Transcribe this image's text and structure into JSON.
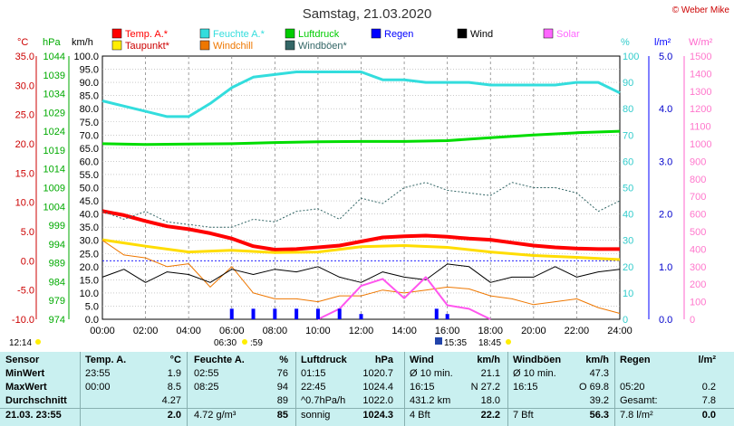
{
  "title": "Samstag, 21.03.2020",
  "copyright": "© Weber Mike",
  "legend": [
    {
      "label": "Temp. A.*",
      "color": "#ff0000"
    },
    {
      "label": "Feuchte A.*",
      "color": "#33dddd"
    },
    {
      "label": "Luftdruck",
      "color": "#00cc00"
    },
    {
      "label": "Regen",
      "color": "#0000ff"
    },
    {
      "label": "Wind",
      "color": "#000000"
    },
    {
      "label": "Solar",
      "color": "#ff66ff"
    },
    {
      "label": "Taupunkt*",
      "color": "#ffee00"
    },
    {
      "label": "Windchill",
      "color": "#ee7700"
    },
    {
      "label": "Windböen*",
      "color": "#336666"
    }
  ],
  "axis_units": {
    "temp": "°C",
    "pressure": "hPa",
    "wind": "km/h",
    "humidity": "%",
    "rain": "l/m²",
    "solar": "W/m²"
  },
  "axes": {
    "temp_ticks": [
      "35.0",
      "30.0",
      "25.0",
      "20.0",
      "15.0",
      "10.0",
      "5.0",
      "0.0",
      "-5.0",
      "-10.0"
    ],
    "pressure_ticks": [
      "1044",
      "1039",
      "1034",
      "1029",
      "1024",
      "1019",
      "1014",
      "1009",
      "1004",
      "999",
      "994",
      "989",
      "984",
      "979",
      "974"
    ],
    "wind_ticks": [
      "100.0",
      "95.0",
      "90.0",
      "85.0",
      "80.0",
      "75.0",
      "70.0",
      "65.0",
      "60.0",
      "55.0",
      "50.0",
      "45.0",
      "40.0",
      "35.0",
      "30.0",
      "25.0",
      "20.0",
      "15.0",
      "10.0",
      "5.0",
      "0.0"
    ],
    "humidity_ticks": [
      "100",
      "90",
      "80",
      "70",
      "60",
      "50",
      "40",
      "30",
      "20",
      "10",
      "0"
    ],
    "rain_ticks": [
      "5.0",
      "4.0",
      "3.0",
      "2.0",
      "1.0",
      "0.0"
    ],
    "solar_ticks": [
      "1500",
      "1400",
      "1300",
      "1200",
      "1100",
      "1000",
      "900",
      "800",
      "700",
      "600",
      "500",
      "400",
      "300",
      "200",
      "100",
      "0"
    ],
    "time_ticks": [
      "00:00",
      "02:00",
      "04:00",
      "06:00",
      "08:00",
      "10:00",
      "12:00",
      "14:00",
      "16:00",
      "18:00",
      "20:00",
      "22:00",
      "24:00"
    ]
  },
  "sun_markers": {
    "sunrise": "06:30",
    "sunset": "18:45",
    "sunrise_extra": ":59",
    "moon": "15:35",
    "time_left": "12:14"
  },
  "chart_data": {
    "type": "line",
    "x_unit": "hours",
    "series": [
      {
        "name": "Temp. A.*",
        "axis": "temp",
        "x": [
          0,
          1,
          2,
          3,
          4,
          5,
          6,
          7,
          8,
          9,
          10,
          11,
          12,
          13,
          14,
          15,
          16,
          17,
          18,
          19,
          20,
          21,
          22,
          23,
          24
        ],
        "values": [
          8.5,
          7.8,
          6.8,
          5.9,
          5.4,
          4.7,
          3.8,
          2.5,
          1.9,
          2.0,
          2.3,
          2.6,
          3.3,
          4.0,
          4.2,
          4.3,
          4.1,
          3.8,
          3.6,
          3.1,
          2.6,
          2.3,
          2.1,
          2.0,
          2.0
        ]
      },
      {
        "name": "Taupunkt*",
        "axis": "temp",
        "x": [
          0,
          2,
          4,
          6,
          8,
          10,
          12,
          14,
          16,
          18,
          20,
          22,
          24
        ],
        "values": [
          3.6,
          2.5,
          1.5,
          1.8,
          1.4,
          1.5,
          2.4,
          2.6,
          2.3,
          1.5,
          0.9,
          0.6,
          0.2
        ]
      },
      {
        "name": "Feuchte A.*",
        "axis": "humidity",
        "x": [
          0,
          1,
          2,
          3,
          4,
          5,
          6,
          7,
          8,
          9,
          10,
          11,
          12,
          13,
          14,
          15,
          16,
          17,
          18,
          19,
          20,
          21,
          22,
          23,
          24
        ],
        "values": [
          83,
          81,
          79,
          77,
          77,
          82,
          88,
          92,
          93,
          94,
          94,
          94,
          94,
          91,
          91,
          90,
          90,
          90,
          89,
          89,
          89,
          89,
          90,
          90,
          86
        ]
      },
      {
        "name": "Luftdruck",
        "axis": "pressure",
        "x": [
          0,
          2,
          4,
          6,
          8,
          10,
          12,
          14,
          16,
          18,
          20,
          22,
          24
        ],
        "values": [
          1020.7,
          1020.5,
          1020.6,
          1020.7,
          1021.0,
          1021.2,
          1021.3,
          1021.3,
          1021.5,
          1022.3,
          1023.0,
          1023.6,
          1024.0
        ]
      },
      {
        "name": "Windchill",
        "axis": "temp",
        "x": [
          0,
          1,
          2,
          3,
          4,
          5,
          6,
          7,
          8,
          9,
          10,
          11,
          12,
          13,
          14,
          15,
          16,
          17,
          18,
          19,
          20,
          21,
          22,
          23,
          24
        ],
        "values": [
          3.5,
          1.0,
          0.5,
          -1.0,
          -0.5,
          -4.5,
          -1.0,
          -5.5,
          -6.5,
          -6.5,
          -7.0,
          -6.0,
          -6.0,
          -5.0,
          -5.5,
          -5.0,
          -4.5,
          -4.8,
          -6.0,
          -6.5,
          -7.5,
          -7.0,
          -6.5,
          -8.0,
          -9.0
        ]
      },
      {
        "name": "Wind",
        "axis": "wind",
        "x": [
          0,
          1,
          2,
          3,
          4,
          5,
          6,
          7,
          8,
          9,
          10,
          11,
          12,
          13,
          14,
          15,
          16,
          17,
          18,
          19,
          20,
          21,
          22,
          23,
          24
        ],
        "values": [
          16,
          19,
          14,
          18,
          17,
          14,
          19,
          17,
          19,
          18,
          20,
          16,
          14,
          18,
          16,
          15,
          21,
          20,
          14,
          16,
          16,
          20,
          16,
          18,
          19
        ]
      },
      {
        "name": "Windböen*",
        "axis": "wind",
        "x": [
          0,
          1,
          2,
          3,
          4,
          5,
          6,
          7,
          8,
          9,
          10,
          11,
          12,
          13,
          14,
          15,
          16,
          17,
          18,
          19,
          20,
          21,
          22,
          23,
          24
        ],
        "values": [
          41,
          38,
          41,
          37,
          36,
          35,
          35,
          38,
          37,
          41,
          42,
          38,
          46,
          44,
          50,
          52,
          49,
          48,
          47,
          52,
          50,
          50,
          48,
          41,
          45
        ]
      },
      {
        "name": "Solar",
        "axis": "solar",
        "x": [
          10,
          11,
          12,
          13,
          14,
          15,
          16,
          17,
          18
        ],
        "values": [
          0,
          60,
          190,
          230,
          120,
          240,
          80,
          60,
          0
        ]
      },
      {
        "name": "Regen",
        "axis": "rain",
        "x": [
          6,
          7,
          8,
          9,
          10,
          11,
          12,
          15.5,
          16
        ],
        "values": [
          0.2,
          0.2,
          0.2,
          0.2,
          0.2,
          0.2,
          0.1,
          0.2,
          0.1
        ]
      }
    ]
  },
  "table": {
    "headers": [
      "Sensor",
      "Temp. A.",
      "°C",
      "Feuchte A.",
      "%",
      "Luftdruck",
      "hPa",
      "Wind",
      "km/h",
      "Windböen",
      "km/h",
      "Regen",
      "l/m²"
    ],
    "rows": [
      {
        "label": "MinWert",
        "cells": [
          "23:55",
          "1.9",
          "02:55",
          "76",
          "01:15",
          "1020.7",
          "Ø 10 min.",
          "21.1",
          "Ø 10 min.",
          "47.3",
          "",
          ""
        ]
      },
      {
        "label": "MaxWert",
        "cells": [
          "00:00",
          "8.5",
          "08:25",
          "94",
          "22:45",
          "1024.4",
          "16:15",
          "N 27.2",
          "16:15",
          "O 69.8",
          "05:20",
          "0.2"
        ]
      },
      {
        "label": "Durchschnitt",
        "cells": [
          "",
          "4.27",
          "",
          "89",
          "^0.7hPa/h",
          "1022.0",
          "431.2 km",
          "18.0",
          "",
          "39.2",
          "Gesamt:",
          "7.8"
        ]
      },
      {
        "label": "21.03. 23:55",
        "cells": [
          "",
          "2.0",
          "4.72 g/m³",
          "85",
          "sonnig",
          "1024.3",
          "4 Bft",
          "22.2",
          "7 Bft",
          "56.3",
          "7.8 l/m²",
          "0.0"
        ]
      }
    ]
  }
}
